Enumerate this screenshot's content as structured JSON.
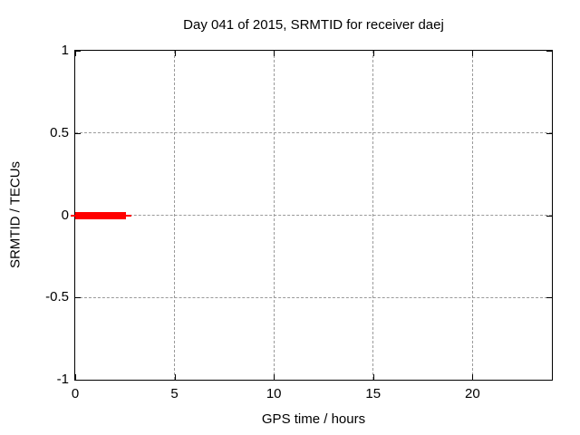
{
  "chart_data": {
    "type": "line",
    "title": "Day 041 of 2015, SRMTID for receiver daej",
    "xlabel": "GPS time / hours",
    "ylabel": "SRMTID / TECUs",
    "xlim": [
      0,
      24
    ],
    "ylim": [
      -1,
      1
    ],
    "xticks": [
      {
        "value": 0,
        "label": "0"
      },
      {
        "value": 5,
        "label": "5"
      },
      {
        "value": 10,
        "label": "10"
      },
      {
        "value": 15,
        "label": "15"
      },
      {
        "value": 20,
        "label": "20"
      }
    ],
    "yticks": [
      {
        "value": 1,
        "label": "1"
      },
      {
        "value": 0.5,
        "label": "0.5"
      },
      {
        "value": 0,
        "label": "0"
      },
      {
        "value": -0.5,
        "label": "-0.5"
      },
      {
        "value": -1,
        "label": "-1"
      }
    ],
    "grid": true,
    "legend": "none",
    "series": [
      {
        "name": "SRMTID",
        "color": "#ff0000",
        "description": "Flat line at SRMTID = 0 TECUs from GPS time 0 to about 2.8 hours; no data for the rest of the day",
        "segments": [
          {
            "x_start": -0.25,
            "x_end": 2.85,
            "y": 0,
            "thickness": "thin"
          },
          {
            "x_start": 0,
            "x_end": 2.55,
            "y": 0,
            "thickness": "thick"
          }
        ]
      }
    ],
    "colors": {
      "line": "#ff0000",
      "grid": "#9a9a9a",
      "axis": "#000000",
      "background": "#ffffff"
    }
  }
}
